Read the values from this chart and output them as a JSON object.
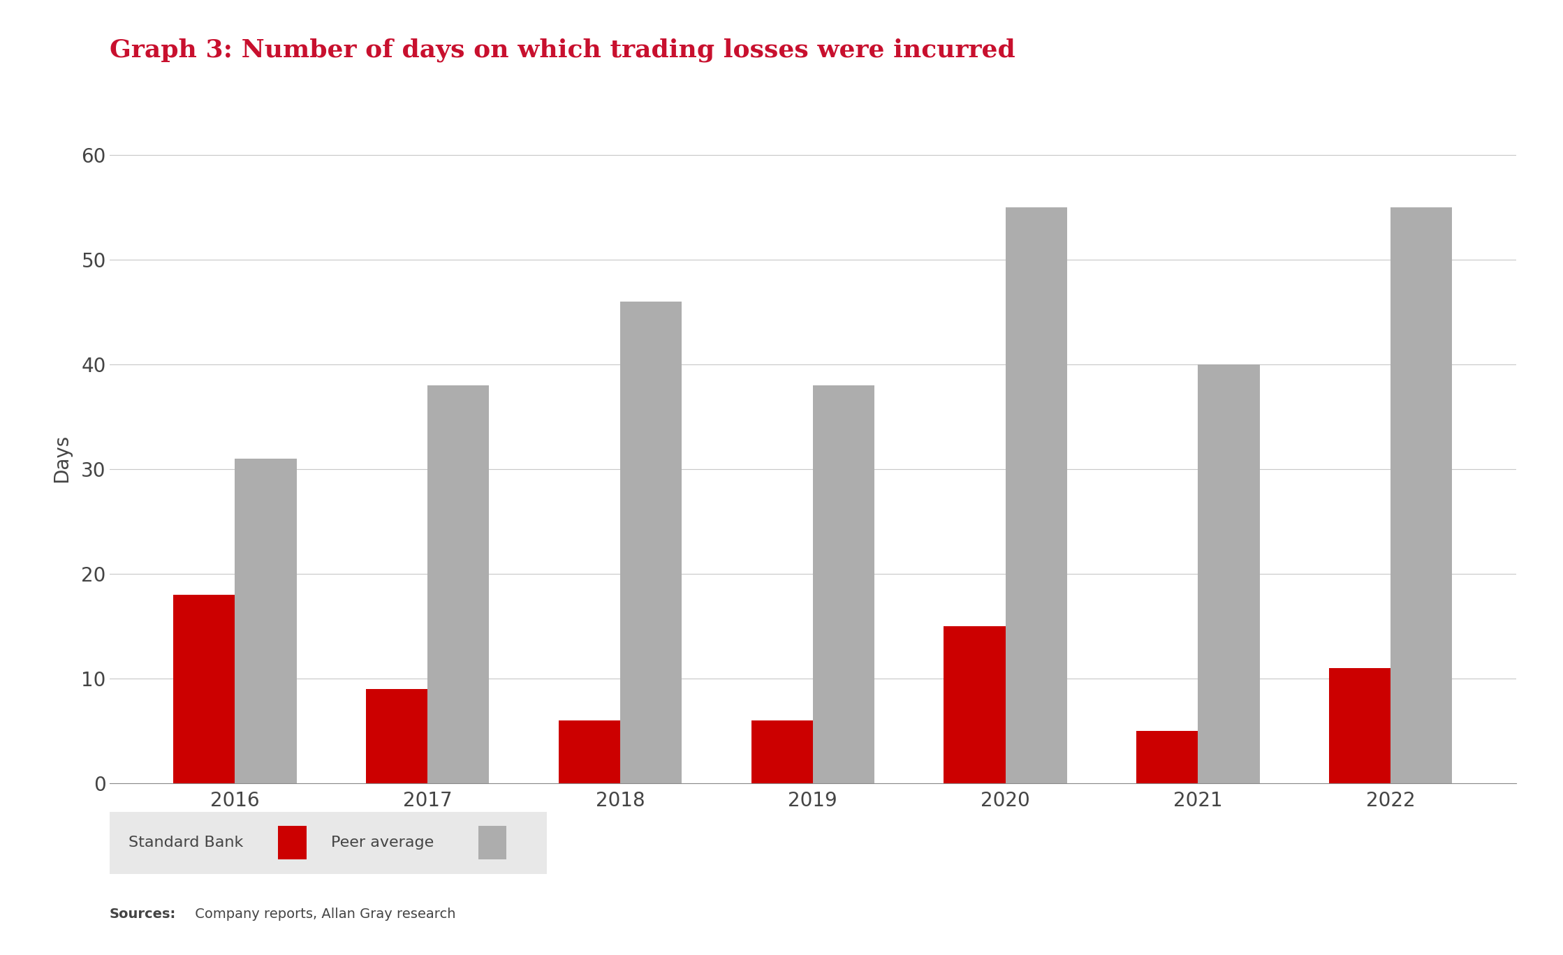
{
  "title": "Graph 3: Number of days on which trading losses were incurred",
  "title_color": "#C8102E",
  "title_fontsize": 26,
  "years": [
    "2016",
    "2017",
    "2018",
    "2019",
    "2020",
    "2021",
    "2022"
  ],
  "standard_bank": [
    18,
    9,
    6,
    6,
    15,
    5,
    11
  ],
  "peer_average": [
    31,
    38,
    46,
    38,
    55,
    40,
    55
  ],
  "standard_bank_color": "#CC0000",
  "peer_average_color": "#ADADAD",
  "ylabel": "Days",
  "ylim": [
    0,
    62
  ],
  "yticks": [
    0,
    10,
    20,
    30,
    40,
    50,
    60
  ],
  "bar_width": 0.32,
  "background_color": "#FFFFFF",
  "grid_color": "#C8C8C8",
  "legend_labels": [
    "Standard Bank",
    "Peer average"
  ],
  "legend_bg": "#E8E8E8",
  "source_bold": "Sources:",
  "source_regular": " Company reports, Allan Gray research",
  "tick_fontsize": 20,
  "ylabel_fontsize": 20,
  "xlabel_fontsize": 20
}
